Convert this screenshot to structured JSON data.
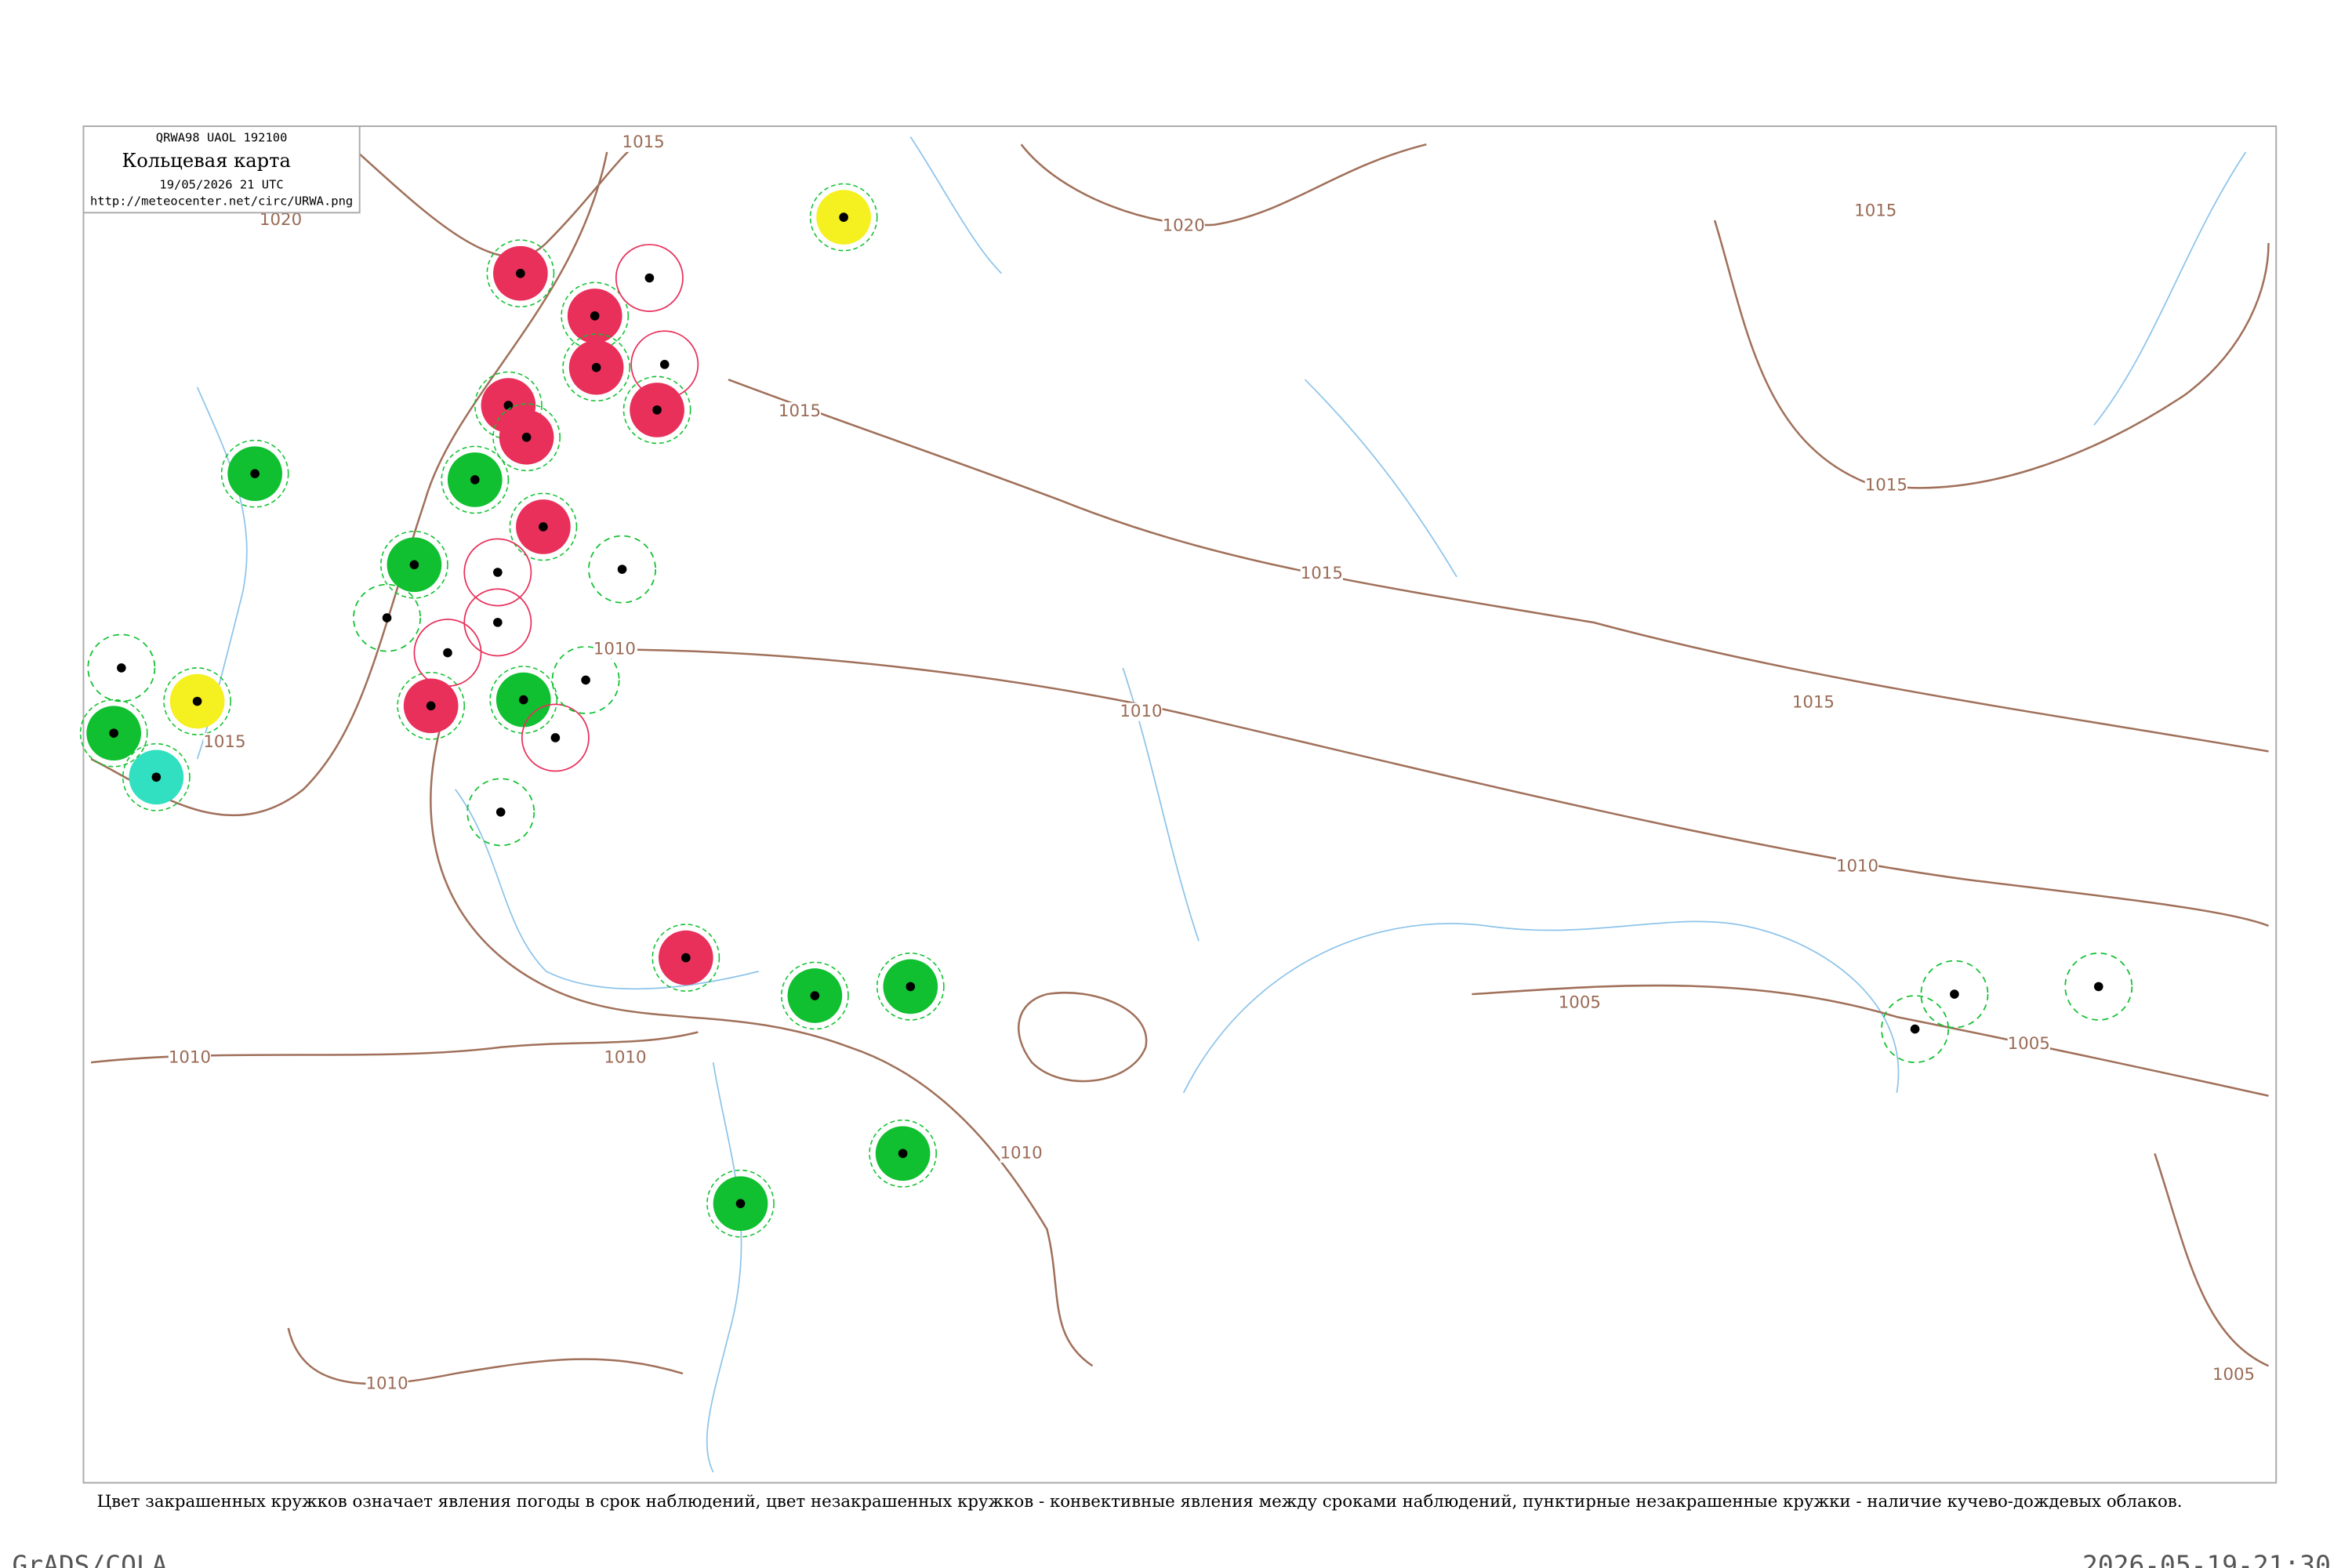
{
  "header": {
    "code": "QRWA98  UAOL  192100",
    "title": "Кольцевая карта",
    "date": "19/05/2026 21 UTC",
    "url": "http://meteocenter.net/circ/URWA.png"
  },
  "isobar_labels": [
    1015,
    1020,
    1020,
    1015,
    1015,
    1015,
    1015,
    1010,
    1010,
    1015,
    1015,
    1010,
    1005,
    1005,
    1010,
    1010,
    1010,
    1010,
    1005
  ],
  "caption": "Цвет закрашенных кружков означает явления погоды в срок наблюдений, цвет незакрашенных кружков - конвективные явления между сроками наблюдений, пунктирные незакрашенные кружки - наличие кучево-дождевых облаков.",
  "footer": {
    "left": "GrADS/COLA",
    "right": "2026-05-19-21:30"
  }
}
